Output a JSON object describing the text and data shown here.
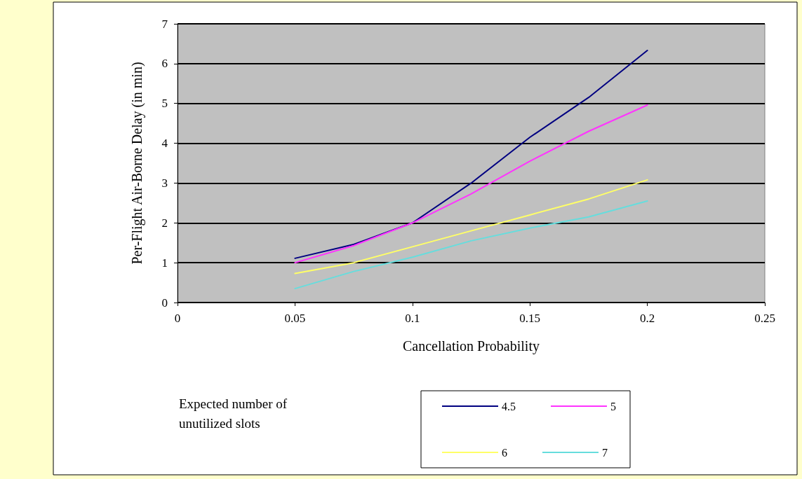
{
  "chart_data": {
    "type": "line",
    "xlabel": "Cancellation Probability",
    "ylabel": "Per-Flight Air-Borne Delay (in min)",
    "legend_title": "Expected number of unutilized slots",
    "x": [
      0.05,
      0.075,
      0.1,
      0.125,
      0.15,
      0.175,
      0.2
    ],
    "series": [
      {
        "name": "4.5",
        "color": "#000080",
        "values": [
          1.11,
          1.46,
          2.0,
          3.0,
          4.15,
          5.15,
          6.33
        ]
      },
      {
        "name": "5",
        "color": "#ff33ff",
        "values": [
          1.0,
          1.43,
          2.0,
          2.73,
          3.55,
          4.3,
          4.96
        ]
      },
      {
        "name": "6",
        "color": "#ffff66",
        "values": [
          0.73,
          1.0,
          1.4,
          1.8,
          2.2,
          2.6,
          3.08
        ]
      },
      {
        "name": "7",
        "color": "#66dddd",
        "values": [
          0.35,
          0.78,
          1.14,
          1.55,
          1.87,
          2.15,
          2.55
        ]
      }
    ],
    "xlim": [
      0,
      0.25
    ],
    "xticks": [
      0,
      0.05,
      0.1,
      0.15,
      0.2,
      0.25
    ],
    "ylim": [
      0,
      7
    ],
    "yticks": [
      0,
      1,
      2,
      3,
      4,
      5,
      6,
      7
    ],
    "grid": "y",
    "legend": "bottom",
    "marker": "none",
    "line_style": "solid"
  }
}
